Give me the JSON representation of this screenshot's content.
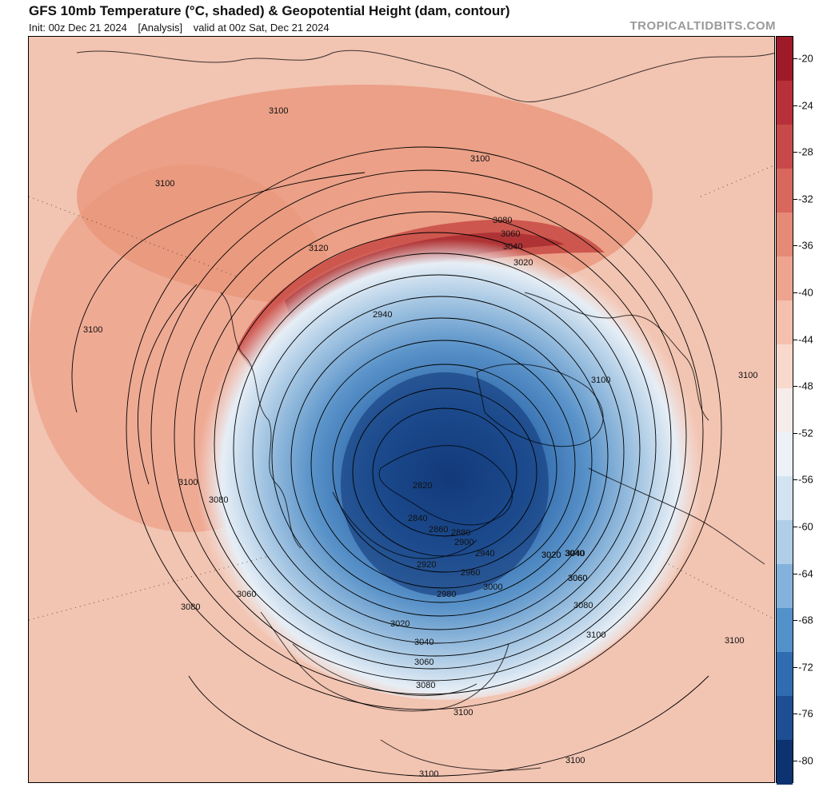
{
  "header": {
    "title": "GFS 10mb Temperature (°C, shaded) & Geopotential Height (dam, contour)",
    "init": "Init: 00z Dec 21 2024",
    "run_type": "[Analysis]",
    "valid": "valid at 00z Sat, Dec 21 2024",
    "brand": "TROPICALTIDBITS.COM"
  },
  "colorbar": {
    "labels": [
      "-20",
      "-24",
      "-28",
      "-32",
      "-36",
      "-40",
      "-44",
      "-48",
      "-52",
      "-56",
      "-60",
      "-64",
      "-68",
      "-72",
      "-76",
      "-80"
    ],
    "colors": [
      "#9e1a28",
      "#b8303a",
      "#c9484a",
      "#d8675e",
      "#e58a76",
      "#eea48f",
      "#f5c0ad",
      "#f9d9cc",
      "#f6ecea",
      "#ecf1f7",
      "#d3e3f1",
      "#b0cee8",
      "#84b2dc",
      "#5391cb",
      "#2f6db0",
      "#1d4f92",
      "#0d3270"
    ]
  },
  "contour_labels": [
    {
      "text": "3100"
    },
    {
      "text": "3100"
    },
    {
      "text": "3100"
    },
    {
      "text": "3100"
    },
    {
      "text": "3100"
    },
    {
      "text": "3100"
    },
    {
      "text": "3100"
    },
    {
      "text": "3100"
    },
    {
      "text": "3100"
    },
    {
      "text": "3100"
    },
    {
      "text": "3120"
    },
    {
      "text": "3080"
    },
    {
      "text": "3060"
    },
    {
      "text": "3040"
    },
    {
      "text": "3020"
    },
    {
      "text": "2940"
    },
    {
      "text": "3080"
    },
    {
      "text": "3060"
    },
    {
      "text": "3080"
    },
    {
      "text": "3060"
    },
    {
      "text": "3040"
    },
    {
      "text": "3020"
    },
    {
      "text": "3000"
    },
    {
      "text": "2980"
    },
    {
      "text": "2960"
    },
    {
      "text": "2940"
    },
    {
      "text": "2920"
    },
    {
      "text": "2900"
    },
    {
      "text": "2880"
    },
    {
      "text": "2860"
    },
    {
      "text": "2840"
    },
    {
      "text": "2820"
    },
    {
      "text": "3020"
    },
    {
      "text": "3040"
    },
    {
      "text": "3060"
    },
    {
      "text": "3080"
    },
    {
      "text": "3100"
    },
    {
      "text": "3100"
    },
    {
      "text": "3060"
    },
    {
      "text": "3080"
    },
    {
      "text": "3040"
    },
    {
      "text": "3020"
    }
  ]
}
